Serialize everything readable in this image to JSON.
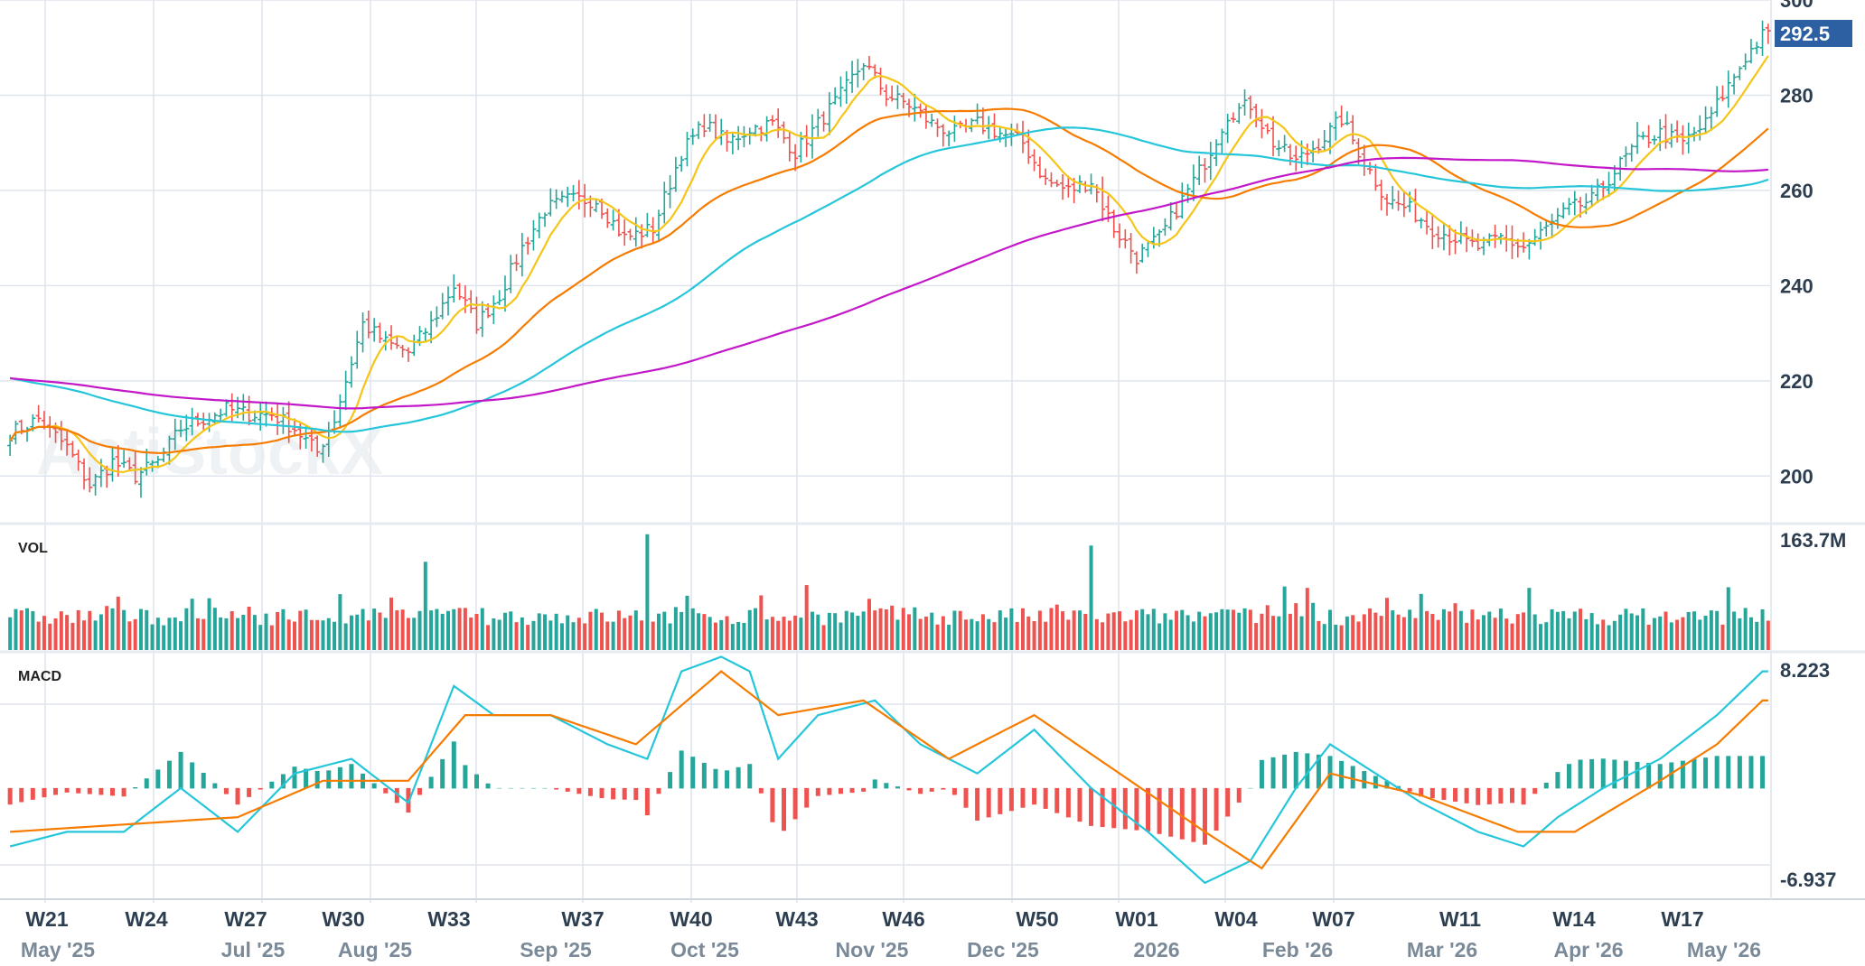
{
  "watermark": "AptiStockX",
  "last_price_badge": "292.5",
  "colors": {
    "up": "#26a69a",
    "down": "#ef5350",
    "grid": "#dfe4ec",
    "sma_fast": "#f5c518",
    "sma_mid": "#f57c00",
    "sma_slow": "#26c6da",
    "sma_long": "#c218c8",
    "macd_line": "#26c6da",
    "signal_line": "#f57c00",
    "badge": "#2d5fa3"
  },
  "chart_data": {
    "type": "candlestick",
    "price_axis": {
      "ylim": [
        190,
        300
      ],
      "ticks": [
        200,
        220,
        240,
        260,
        280,
        300
      ]
    },
    "volume_panel": {
      "label": "VOL",
      "max_label": "163.7M",
      "max": 163.7
    },
    "macd_panel": {
      "label": "MACD",
      "top_label": "8.223",
      "bottom_label": "-6.937",
      "ylim": [
        -6.937,
        8.223
      ]
    },
    "x_axis": {
      "weeks": [
        "W21",
        "W24",
        "W27",
        "W30",
        "W33",
        "W37",
        "W40",
        "W43",
        "W46",
        "W50",
        "W01",
        "W04",
        "W07",
        "W11",
        "W14",
        "W17"
      ],
      "months": [
        "May '25",
        "Jul '25",
        "Aug '25",
        "Sep '25",
        "Oct '25",
        "Nov '25",
        "Dec '25",
        "2026",
        "Feb '26",
        "Mar '26",
        "Apr '26",
        "May '26"
      ]
    },
    "close_anchors": [
      [
        0,
        209
      ],
      [
        5,
        212
      ],
      [
        10,
        206
      ],
      [
        14,
        198
      ],
      [
        18,
        203
      ],
      [
        22,
        200
      ],
      [
        26,
        203
      ],
      [
        30,
        210
      ],
      [
        34,
        212
      ],
      [
        38,
        214
      ],
      [
        42,
        213
      ],
      [
        46,
        213
      ],
      [
        50,
        210
      ],
      [
        54,
        205
      ],
      [
        57,
        212
      ],
      [
        62,
        232
      ],
      [
        66,
        228
      ],
      [
        70,
        226
      ],
      [
        74,
        232
      ],
      [
        78,
        240
      ],
      [
        82,
        232
      ],
      [
        86,
        238
      ],
      [
        90,
        248
      ],
      [
        94,
        256
      ],
      [
        98,
        258
      ],
      [
        103,
        258
      ],
      [
        108,
        250
      ],
      [
        113,
        252
      ],
      [
        118,
        268
      ],
      [
        122,
        274
      ],
      [
        126,
        270
      ],
      [
        130,
        273
      ],
      [
        134,
        274
      ],
      [
        138,
        268
      ],
      [
        142,
        274
      ],
      [
        146,
        280
      ],
      [
        150,
        287
      ],
      [
        154,
        280
      ],
      [
        158,
        278
      ],
      [
        162,
        274
      ],
      [
        166,
        272
      ],
      [
        170,
        274
      ],
      [
        174,
        272
      ],
      [
        178,
        270
      ],
      [
        182,
        262
      ],
      [
        186,
        260
      ],
      [
        190,
        262
      ],
      [
        194,
        252
      ],
      [
        198,
        246
      ],
      [
        202,
        250
      ],
      [
        206,
        258
      ],
      [
        210,
        266
      ],
      [
        214,
        276
      ],
      [
        218,
        278
      ],
      [
        222,
        270
      ],
      [
        226,
        266
      ],
      [
        230,
        270
      ],
      [
        234,
        275
      ],
      [
        238,
        266
      ],
      [
        242,
        258
      ],
      [
        246,
        256
      ],
      [
        250,
        252
      ],
      [
        254,
        250
      ],
      [
        258,
        248
      ],
      [
        262,
        250
      ],
      [
        266,
        248
      ],
      [
        270,
        252
      ],
      [
        274,
        256
      ],
      [
        278,
        258
      ],
      [
        282,
        264
      ],
      [
        286,
        270
      ],
      [
        290,
        272
      ],
      [
        294,
        270
      ],
      [
        298,
        274
      ],
      [
        302,
        282
      ],
      [
        305,
        288
      ],
      [
        308,
        292.5
      ]
    ],
    "volume_spikes": [
      [
        73,
        125
      ],
      [
        112,
        164
      ],
      [
        140,
        92
      ],
      [
        190,
        148
      ],
      [
        224,
        90
      ],
      [
        228,
        88
      ],
      [
        267,
        88
      ],
      [
        302,
        89
      ]
    ],
    "macd": {
      "line": [
        [
          0,
          -4
        ],
        [
          10,
          -3
        ],
        [
          20,
          -3
        ],
        [
          30,
          0
        ],
        [
          40,
          -3
        ],
        [
          50,
          1
        ],
        [
          60,
          2
        ],
        [
          70,
          -1
        ],
        [
          78,
          7
        ],
        [
          85,
          5
        ],
        [
          95,
          5
        ],
        [
          105,
          3
        ],
        [
          112,
          2
        ],
        [
          118,
          8
        ],
        [
          125,
          9
        ],
        [
          130,
          8
        ],
        [
          135,
          2
        ],
        [
          142,
          5
        ],
        [
          152,
          6
        ],
        [
          160,
          3
        ],
        [
          170,
          1
        ],
        [
          180,
          4
        ],
        [
          190,
          0
        ],
        [
          200,
          -3
        ],
        [
          210,
          -6.5
        ],
        [
          218,
          -5
        ],
        [
          226,
          0
        ],
        [
          232,
          3
        ],
        [
          240,
          1
        ],
        [
          248,
          -1
        ],
        [
          258,
          -3
        ],
        [
          266,
          -4
        ],
        [
          272,
          -2
        ],
        [
          280,
          0
        ],
        [
          290,
          2
        ],
        [
          300,
          5
        ],
        [
          308,
          8
        ]
      ],
      "signal": [
        [
          0,
          -3
        ],
        [
          20,
          -2.5
        ],
        [
          40,
          -2
        ],
        [
          55,
          0.5
        ],
        [
          70,
          0.5
        ],
        [
          80,
          5
        ],
        [
          95,
          5
        ],
        [
          110,
          3
        ],
        [
          125,
          8
        ],
        [
          135,
          5
        ],
        [
          150,
          6
        ],
        [
          165,
          2
        ],
        [
          180,
          5
        ],
        [
          195,
          1
        ],
        [
          210,
          -3
        ],
        [
          220,
          -5.5
        ],
        [
          232,
          1
        ],
        [
          248,
          -0.5
        ],
        [
          265,
          -3
        ],
        [
          275,
          -3
        ],
        [
          290,
          0.5
        ],
        [
          300,
          3
        ],
        [
          308,
          6
        ]
      ]
    },
    "overlays": [
      {
        "period": "fast"
      },
      {
        "period": "mid"
      },
      {
        "period": "slow"
      },
      {
        "period": "long"
      }
    ]
  }
}
